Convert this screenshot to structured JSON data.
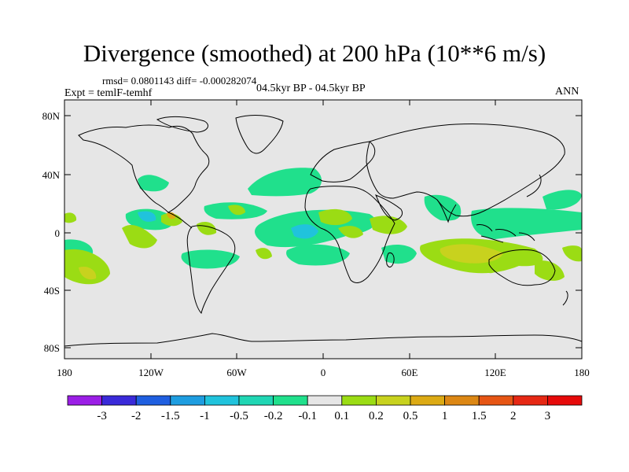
{
  "title": "Divergence (smoothed) at 200 hPa (10**6 m/s)",
  "stats": "rmsd= 0.0801143 diff= -0.000282074",
  "expt": "Expt = temlF-temhf",
  "period": "04.5kyr BP - 04.5kyr BP",
  "season": "ANN",
  "lat_labels": [
    "80N",
    "40N",
    "0",
    "40S",
    "80S"
  ],
  "lon_labels": [
    "180",
    "120W",
    "60W",
    "0",
    "60E",
    "120E",
    "180"
  ],
  "colorbar": {
    "labels": [
      "-3",
      "-2",
      "-1.5",
      "-1",
      "-0.5",
      "-0.2",
      "-0.1",
      "0.1",
      "0.2",
      "0.5",
      "1",
      "1.5",
      "2",
      "3"
    ],
    "colors": [
      "#9b1ee6",
      "#3a2ad9",
      "#1f5fe0",
      "#1e9de0",
      "#20c3dc",
      "#20d6b4",
      "#20e08c",
      "#e6e6e6",
      "#9bdc14",
      "#c8d21e",
      "#dcaa14",
      "#dc8714",
      "#e65514",
      "#e62814",
      "#e60a0a"
    ]
  },
  "colors": {
    "land_fill": "#e6e6e6",
    "coastline": "#000000",
    "pos_weak": "#9bdc14",
    "pos_mid": "#c8d21e",
    "neg_weak": "#20e08c",
    "neg_mid": "#20c3dc"
  }
}
